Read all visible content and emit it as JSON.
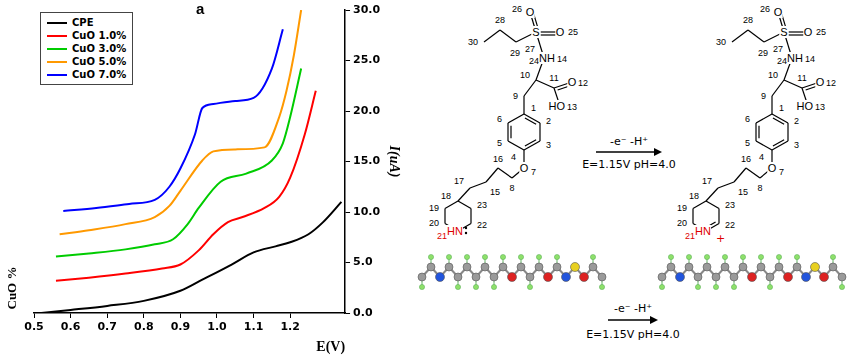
{
  "chart_data": {
    "type": "line",
    "panel_label": "a",
    "x_label": "E(V)",
    "y_label": "I(uA)",
    "depth_label": "CuO %",
    "xlim": [
      0.5,
      1.35
    ],
    "xticks": [
      0.5,
      0.6,
      0.7,
      0.8,
      0.9,
      {
        "value": 1,
        "label": "1.0"
      },
      1.1,
      1.2
    ],
    "ylim": [
      0,
      30
    ],
    "yticks": [
      {
        "value": 0,
        "label": "0.0"
      },
      {
        "value": 5,
        "label": "5.0"
      },
      {
        "value": 10,
        "label": "10.0"
      },
      {
        "value": 15,
        "label": "15.0"
      },
      {
        "value": 20,
        "label": "20.0"
      },
      {
        "value": 25,
        "label": "25.0"
      },
      {
        "value": 30,
        "label": "30.0"
      }
    ],
    "grid": false,
    "legend": "upper left",
    "series": [
      {
        "name": "CPE",
        "color": "#000000",
        "x": [
          0.52,
          0.6,
          0.7,
          0.8,
          0.9,
          0.96,
          1.04,
          1.1,
          1.16,
          1.2,
          1.25,
          1.29,
          1.34
        ],
        "values": [
          0,
          0.3,
          0.7,
          1.2,
          2.2,
          3.3,
          4.8,
          6,
          6.6,
          7,
          7.8,
          9,
          11
        ]
      },
      {
        "name": "CuO 1.0%",
        "color": "#ff0000",
        "x": [
          0.56,
          0.65,
          0.75,
          0.85,
          0.9,
          0.95,
          0.99,
          1.03,
          1.07,
          1.13,
          1.17,
          1.2,
          1.24,
          1.27
        ],
        "values": [
          3.2,
          3.5,
          3.9,
          4.4,
          4.8,
          6.2,
          7.8,
          9,
          9.5,
          10.4,
          11.5,
          13.4,
          17.7,
          22
        ]
      },
      {
        "name": "CuO 3.0%",
        "color": "#00cc00",
        "x": [
          0.56,
          0.65,
          0.75,
          0.83,
          0.88,
          0.92,
          0.95,
          1.01,
          1.08,
          1.15,
          1.18,
          1.2,
          1.23
        ],
        "values": [
          5.6,
          5.9,
          6.3,
          6.8,
          7.3,
          8.8,
          10.4,
          13,
          13.8,
          15.1,
          16.8,
          19.4,
          24.2
        ]
      },
      {
        "name": "CuO 5.0%",
        "color": "#ff9900",
        "x": [
          0.57,
          0.65,
          0.75,
          0.83,
          0.87,
          0.9,
          0.96,
          0.99,
          1.05,
          1.13,
          1.17,
          1.19,
          1.21,
          1.23
        ],
        "values": [
          7.8,
          8.2,
          8.8,
          9.5,
          10.6,
          12.1,
          15.1,
          16,
          16.2,
          16.4,
          19.4,
          22,
          25.5,
          30
        ]
      },
      {
        "name": "CuO 7.0%",
        "color": "#0000ff",
        "x": [
          0.58,
          0.67,
          0.76,
          0.83,
          0.87,
          0.9,
          0.94,
          0.96,
          0.99,
          1.05,
          1.1,
          1.15,
          1.18
        ],
        "values": [
          10.1,
          10.4,
          10.8,
          11.2,
          12.5,
          14.3,
          17.7,
          20.3,
          20.7,
          21,
          21.3,
          24.2,
          28.1
        ]
      }
    ]
  },
  "scheme": {
    "numbers": [
      "1",
      "2",
      "3",
      "4",
      "5",
      "6",
      "7",
      "8",
      "9",
      "10",
      "11",
      "12",
      "13",
      "14",
      "15",
      "16",
      "17",
      "18",
      "19",
      "20",
      "21",
      "22",
      "23",
      "24",
      "25",
      "26",
      "27",
      "28",
      "29",
      "30"
    ],
    "symbols": {
      "7": "O",
      "12": "O",
      "13": "HO",
      "21": "HN",
      "24": "NH",
      "25": "O",
      "26": "O",
      "27": "S"
    },
    "product_charge": "+",
    "arrow_top": "-e⁻ -H⁺",
    "arrow_bottom": "E=1.15V pH=4.0",
    "model_arrow_top": "-e⁻ -H⁺",
    "model_arrow_bottom": "E=1.15V pH=4.0"
  }
}
